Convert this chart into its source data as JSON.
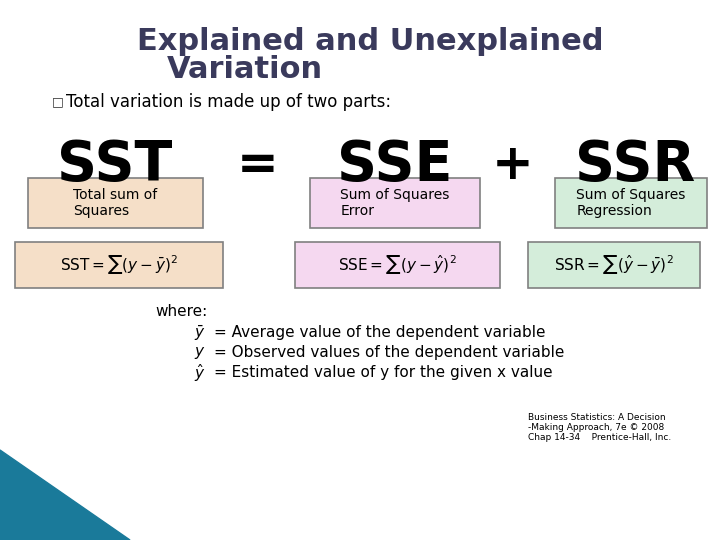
{
  "title_line1": "Explained and Unexplained",
  "title_line2": "Variation",
  "title_color": "#3a3a5c",
  "bullet_text": "Total variation is made up of two parts:",
  "bg_color": "#ffffff",
  "box1_color": "#f5dfc8",
  "box2_color": "#f5d8f0",
  "box3_color": "#d4edda",
  "formula_bg1": "#f5dfc8",
  "formula_bg2": "#f5d8f0",
  "formula_bg3": "#d4edda",
  "box1_label": "Total sum of\nSquares",
  "box2_label": "Sum of Squares\nError",
  "box3_label": "Sum of Squares\nRegression",
  "where_text": "where:",
  "def1_text": "= Average value of the dependent variable",
  "def2_text": "= Observed values of the dependent variable",
  "def3_text": "= Estimated value of y for the given x value",
  "footnote1": "Business Statistics: A Decision",
  "footnote2": "-Making Approach, 7e © 2008",
  "footnote3": "Chap 14-34    Prentice-Hall, Inc.",
  "border_color": "#808080",
  "corner_color": "#1a7a9a",
  "text_color": "#000000"
}
